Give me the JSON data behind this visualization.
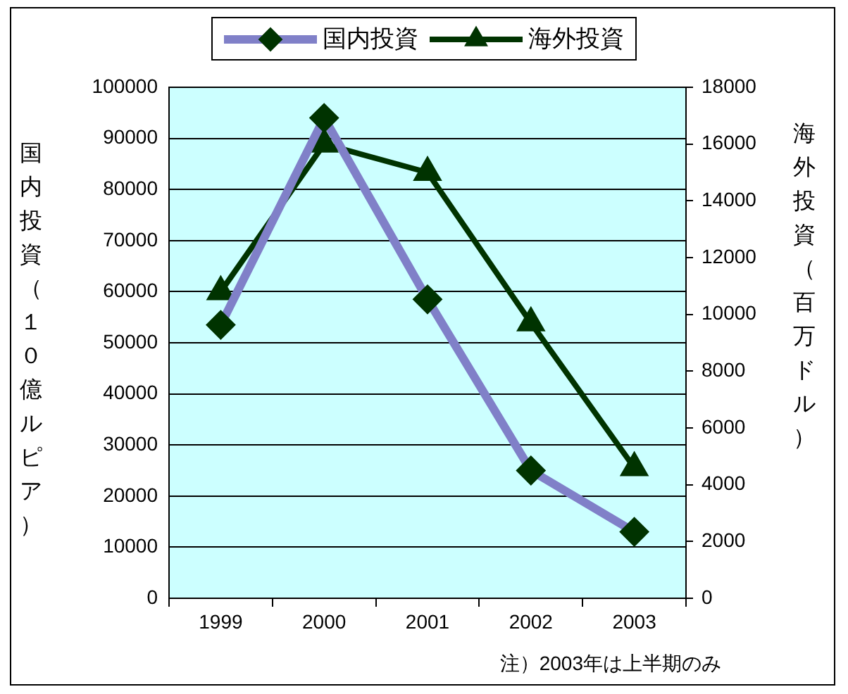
{
  "chart_data": {
    "type": "line",
    "ylabel": "国内投資（１０億ルピア）",
    "y2label": "海外投資（百万ドル）",
    "categories": [
      "1999",
      "2000",
      "2001",
      "2002",
      "2003"
    ],
    "series": [
      {
        "name": "国内投資",
        "color": "#8080c8",
        "marker": "diamond",
        "values": [
          53500,
          94000,
          58500,
          25000,
          13000
        ]
      },
      {
        "name": "海外投資",
        "color": "#003300",
        "marker": "triangle",
        "axis": "y2",
        "values": [
          10800,
          16000,
          15000,
          9700,
          4600
        ]
      }
    ],
    "ylim": [
      0,
      100000
    ],
    "yticks": [
      0,
      10000,
      20000,
      30000,
      40000,
      50000,
      60000,
      70000,
      80000,
      90000,
      100000
    ],
    "y2lim": [
      0,
      18000
    ],
    "y2ticks": [
      0,
      2000,
      4000,
      6000,
      8000,
      10000,
      12000,
      14000,
      16000,
      18000
    ],
    "grid": "y",
    "legend": "top",
    "line_style": "solid",
    "annotations": [
      "注）2003年は上半期のみ"
    ]
  }
}
